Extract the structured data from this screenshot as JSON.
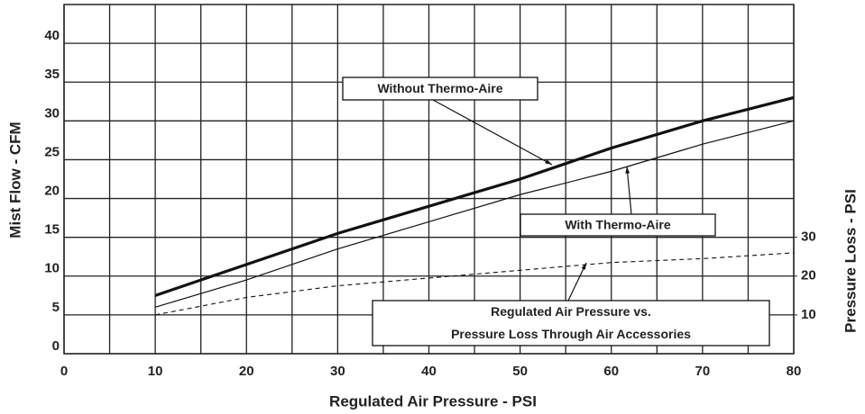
{
  "chart_data": {
    "type": "line",
    "x_label": "Regulated Air Pressure - PSI",
    "y_label": "Mist Flow - CFM",
    "y2_label": "Pressure Loss - PSI",
    "xlim": [
      0,
      80
    ],
    "xticks": [
      0,
      10,
      20,
      30,
      40,
      50,
      60,
      70,
      80
    ],
    "x_minor_ticks": [
      5,
      15,
      25,
      35,
      45,
      55,
      65,
      75
    ],
    "ylim": [
      0,
      45
    ],
    "yticks": [
      0,
      5,
      10,
      15,
      20,
      25,
      30,
      35,
      40
    ],
    "y2lim": [
      0,
      90
    ],
    "y2ticks": [
      10,
      20,
      30
    ],
    "grid": true,
    "x": [
      10,
      20,
      30,
      40,
      50,
      60,
      70,
      80
    ],
    "series": [
      {
        "name": "Without Thermo-Aire",
        "color": "#111",
        "values": [
          7.5,
          11.5,
          15.5,
          19,
          22.5,
          26.5,
          30,
          33
        ]
      },
      {
        "name": "With Thermo-Aire",
        "color": "#111",
        "values": [
          6,
          9.5,
          13.5,
          17,
          20.5,
          23.5,
          27,
          30
        ]
      },
      {
        "name": "Regulated Air Pressure vs. Pressure Loss Through Air Accessories",
        "color": "#111",
        "axis": "y2",
        "values": [
          10,
          14.5,
          17.5,
          19.5,
          21.5,
          23.5,
          24.5,
          26
        ]
      }
    ],
    "annotations": [
      {
        "lines": [
          "Without Thermo-Aire"
        ]
      },
      {
        "lines": [
          "With Thermo-Aire"
        ]
      },
      {
        "lines": [
          "Regulated Air Pressure vs.",
          "Pressure Loss Through Air Accessories"
        ]
      }
    ]
  }
}
